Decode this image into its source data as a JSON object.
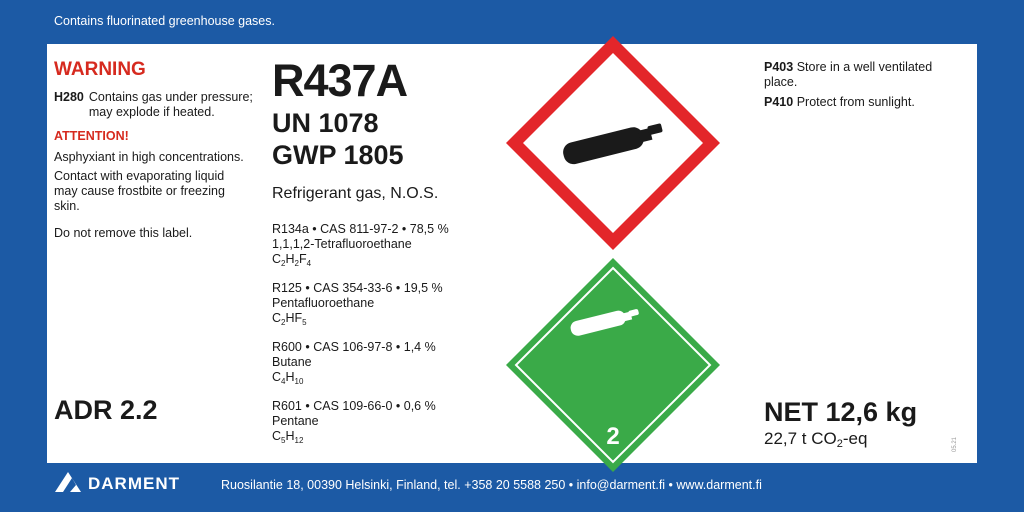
{
  "header": {
    "notice": "Contains fluorinated greenhouse gases."
  },
  "left": {
    "warning": "WARNING",
    "h280": {
      "code": "H280",
      "text": [
        "Contains gas under pressure;",
        "may explode if heated."
      ]
    },
    "attention": "ATTENTION!",
    "notes": [
      "Asphyxiant in high concentrations.",
      "Contact with evaporating liquid may cause frostbite or freezing skin.",
      "Do not remove this label."
    ],
    "adr": "ADR 2.2"
  },
  "product": {
    "name": "R437A",
    "un": "UN 1078",
    "gwp": "GWP 1805",
    "description": "Refrigerant gas, N.O.S.",
    "components": [
      {
        "line": "R134a • CAS 811-97-2 • 78,5 %",
        "name": "1,1,1,2-Tetrafluoroethane",
        "formula": [
          "C",
          "2",
          "H",
          "2",
          "F",
          "4"
        ]
      },
      {
        "line": "R125 • CAS 354-33-6 • 19,5 %",
        "name": "Pentafluoroethane",
        "formula": [
          "C",
          "2",
          "HF",
          "5"
        ]
      },
      {
        "line": "R600 • CAS 106-97-8 • 1,4 %",
        "name": "Butane",
        "formula": [
          "C",
          "4",
          "H",
          "10"
        ]
      },
      {
        "line": "R601 • CAS 109-66-0 • 0,6 %",
        "name": "Pentane",
        "formula": [
          "C",
          "5",
          "H",
          "12"
        ]
      }
    ]
  },
  "pictogram": {
    "class": "2"
  },
  "right": {
    "p403": {
      "code": "P403",
      "text": "Store in a well ventilated place."
    },
    "p410": {
      "code": "P410",
      "text": "Protect from sunlight."
    },
    "net": "NET 12,6 kg",
    "co2": [
      "22,7 t CO",
      "2",
      "-eq"
    ],
    "code": "05.21"
  },
  "footer": {
    "brand": "DARMENT",
    "address": "Ruosilantie 18, 00390 Helsinki, Finland, tel. +358 20 5588 250 • info@darment.fi • www.darment.fi"
  }
}
